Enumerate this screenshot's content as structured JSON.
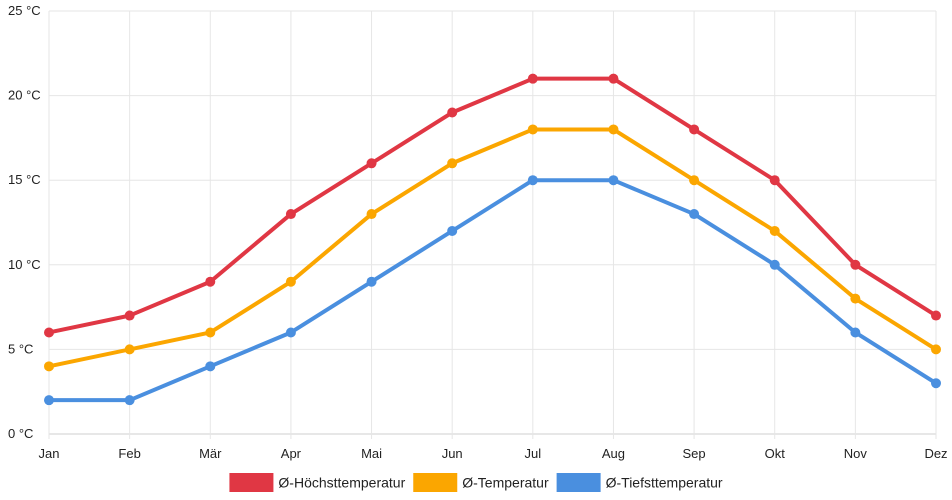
{
  "chart_data": {
    "type": "line",
    "title": "",
    "xlabel": "",
    "ylabel": "",
    "categories": [
      "Jan",
      "Feb",
      "Mär",
      "Apr",
      "Mai",
      "Jun",
      "Jul",
      "Aug",
      "Sep",
      "Okt",
      "Nov",
      "Dez"
    ],
    "ylim": [
      0,
      25
    ],
    "yticks": [
      0,
      5,
      10,
      15,
      20,
      25
    ],
    "ytick_labels": [
      "0 °C",
      "5 °C",
      "10 °C",
      "15 °C",
      "20 °C",
      "25 °C"
    ],
    "grid": true,
    "legend_position": "bottom",
    "series": [
      {
        "name": "Ø-Höchsttemperatur",
        "color": "#e03744",
        "values": [
          6,
          7,
          9,
          13,
          16,
          19,
          21,
          21,
          18,
          15,
          10,
          7
        ]
      },
      {
        "name": "Ø-Temperatur",
        "color": "#fba600",
        "values": [
          4,
          5,
          6,
          9,
          13,
          16,
          18,
          18,
          15,
          12,
          8,
          5
        ]
      },
      {
        "name": "Ø-Tiefsttemperatur",
        "color": "#4a8fdf",
        "values": [
          2,
          2,
          4,
          6,
          9,
          12,
          15,
          15,
          13,
          10,
          6,
          3
        ]
      }
    ]
  }
}
